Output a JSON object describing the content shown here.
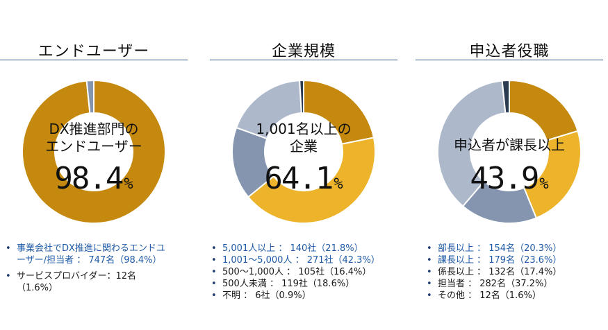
{
  "colors": {
    "brown": "#C4890E",
    "gold": "#EDB42B",
    "slate": "#8595AF",
    "light": "#ADB8CA",
    "navy": "#2A3B52",
    "link": "#1F5AA6",
    "rule": "#2E4F80"
  },
  "chart_data": [
    {
      "type": "pie",
      "title": "エンドユーザー",
      "center_label": [
        "DX推進部門の",
        "エンドユーザー"
      ],
      "center_value": "98.4",
      "center_unit": "%",
      "slices": [
        {
          "name": "事業会社でDX推進に関わるエンドユーザー/担当者",
          "value": 98.4,
          "count": 747,
          "color": "#C4890E"
        },
        {
          "name": "サービスプロバイダー",
          "value": 1.6,
          "count": 12,
          "color": "#8595AF"
        }
      ],
      "legend": [
        {
          "text": "事業会社でDX推進に関わるエンドユーザー/担当者 ： 747名（98.4%）",
          "highlight": true
        },
        {
          "text": "サービスプロバイダー：12名（1.6%）",
          "highlight": false
        }
      ]
    },
    {
      "type": "pie",
      "title": "企業規模",
      "center_label": [
        "1,001名以上の",
        "企業"
      ],
      "center_value": "64.1",
      "center_unit": "%",
      "slices": [
        {
          "name": "5,001人以上",
          "value": 21.8,
          "count": 140,
          "color": "#C4890E"
        },
        {
          "name": "1,001～5,000人",
          "value": 42.3,
          "count": 271,
          "color": "#EDB42B"
        },
        {
          "name": "500～1,000人",
          "value": 16.4,
          "count": 105,
          "color": "#8595AF"
        },
        {
          "name": "500人未満",
          "value": 18.6,
          "count": 119,
          "color": "#ADB8CA"
        },
        {
          "name": "不明",
          "value": 0.9,
          "count": 6,
          "color": "#2A3B52"
        }
      ],
      "legend": [
        {
          "text": "5,001人以上 ： 140社（21.8%）",
          "highlight": true
        },
        {
          "text": "1,001～5,000人 ： 271社（42.3%）",
          "highlight": true
        },
        {
          "text": "500～1,000人 ： 105社（16.4%）",
          "highlight": false
        },
        {
          "text": "500人未満 ： 119社（18.6%）",
          "highlight": false
        },
        {
          "text": "不明 ： 6社（0.9%）",
          "highlight": false
        }
      ]
    },
    {
      "type": "pie",
      "title": "申込者役職",
      "center_label": [
        "申込者が課長以上"
      ],
      "center_value": "43.9",
      "center_unit": "%",
      "slices": [
        {
          "name": "部長以上",
          "value": 20.3,
          "count": 154,
          "color": "#C4890E"
        },
        {
          "name": "課長以上",
          "value": 23.6,
          "count": 179,
          "color": "#EDB42B"
        },
        {
          "name": "係長以上",
          "value": 17.4,
          "count": 132,
          "color": "#8595AF"
        },
        {
          "name": "担当者",
          "value": 37.2,
          "count": 282,
          "color": "#ADB8CA"
        },
        {
          "name": "その他",
          "value": 1.6,
          "count": 12,
          "color": "#2A3B52"
        }
      ],
      "legend": [
        {
          "text": "部長以上 ： 154名（20.3%）",
          "highlight": true
        },
        {
          "text": "課長以上 ： 179名（23.6%）",
          "highlight": true
        },
        {
          "text": "係長以上 ： 132名（17.4%）",
          "highlight": false
        },
        {
          "text": "担当者 ： 282名（37.2%）",
          "highlight": false
        },
        {
          "text": "その他 ： 12名（1.6%）",
          "highlight": false
        }
      ]
    }
  ]
}
